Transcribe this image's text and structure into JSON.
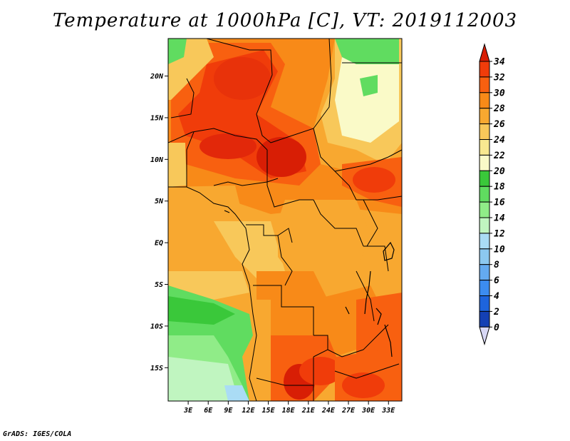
{
  "title": "Temperature at 1000hPa [C], VT: 2019112003",
  "footer": "GrADS: IGES/COLA",
  "map": {
    "lon_range": [
      0,
      35
    ],
    "lat_range": [
      -19,
      24.5
    ],
    "lon_ticks": [
      "3E",
      "6E",
      "9E",
      "12E",
      "15E",
      "18E",
      "21E",
      "24E",
      "27E",
      "30E",
      "33E"
    ],
    "lat_ticks": [
      "20N",
      "15N",
      "10N",
      "5N",
      "EQ",
      "5S",
      "10S",
      "15S"
    ]
  },
  "colorbar": {
    "labels": [
      "34",
      "32",
      "30",
      "28",
      "26",
      "24",
      "22",
      "20",
      "18",
      "16",
      "14",
      "12",
      "10",
      "8",
      "6",
      "4",
      "2",
      "0"
    ],
    "colors": [
      "#d81e05",
      "#f03c0a",
      "#f86010",
      "#f88a18",
      "#f8a830",
      "#f8c85a",
      "#f8e890",
      "#fafac8",
      "#3ac83a",
      "#60dc60",
      "#90ec88",
      "#c0f5c0",
      "#aadcf5",
      "#8cc8f0",
      "#64aaf0",
      "#3c8cf0",
      "#1e64dc",
      "#1440b4",
      "#0a148c",
      "#d8d8f5"
    ]
  }
}
